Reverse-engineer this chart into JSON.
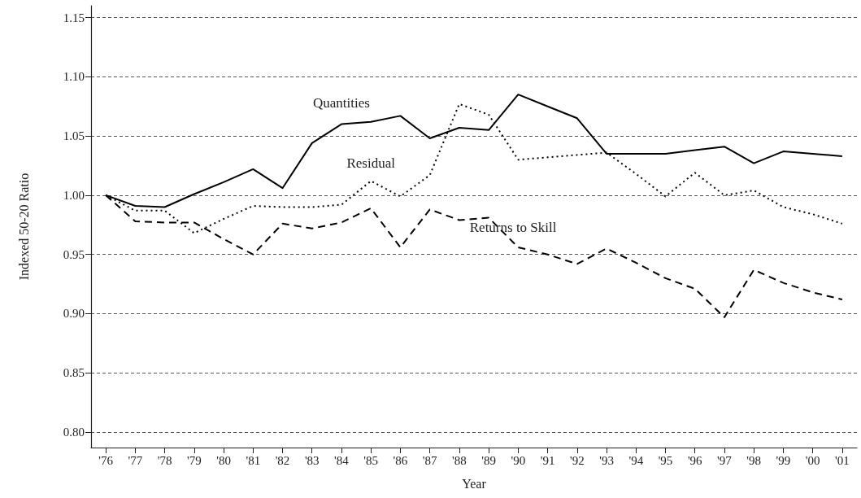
{
  "chart_data": {
    "type": "line",
    "xlabel": "Year",
    "ylabel": "Indexed 50-20 Ratio",
    "categories": [
      "'76",
      "'77",
      "'78",
      "'79",
      "'80",
      "'81",
      "'82",
      "'83",
      "'84",
      "'85",
      "'86",
      "'87",
      "'88",
      "'89",
      "'90",
      "'91",
      "'92",
      "'93",
      "'94",
      "'95",
      "'96",
      "'97",
      "'98",
      "'99",
      "'00",
      "'01"
    ],
    "series": [
      {
        "name": "Quantities",
        "color": "#000000",
        "line_style": "solid",
        "values": [
          1.0,
          0.991,
          0.99,
          1.001,
          1.011,
          1.022,
          1.006,
          1.044,
          1.06,
          1.062,
          1.067,
          1.048,
          1.057,
          1.055,
          1.085,
          1.075,
          1.065,
          1.035,
          1.035,
          1.035,
          1.038,
          1.041,
          1.027,
          1.037,
          1.035,
          1.033
        ]
      },
      {
        "name": "Residual",
        "color": "#000000",
        "line_style": "dotted",
        "values": [
          1.0,
          0.987,
          0.987,
          0.968,
          0.98,
          0.991,
          0.99,
          0.99,
          0.992,
          1.012,
          0.999,
          1.017,
          1.077,
          1.068,
          1.03,
          1.032,
          1.034,
          1.036,
          1.018,
          0.999,
          1.019,
          1.0,
          1.004,
          0.99,
          0.984,
          0.976
        ]
      },
      {
        "name": "Returns to Skill",
        "color": "#000000",
        "line_style": "dashed",
        "values": [
          1.0,
          0.978,
          0.977,
          0.977,
          0.963,
          0.95,
          0.976,
          0.972,
          0.977,
          0.989,
          0.956,
          0.988,
          0.979,
          0.981,
          0.956,
          0.95,
          0.942,
          0.955,
          0.943,
          0.93,
          0.921,
          0.897,
          0.937,
          0.926,
          0.918,
          0.912
        ]
      }
    ],
    "ylim": [
      0.787,
      1.16
    ],
    "yticks": [
      {
        "value": 0.8,
        "label": "0.80"
      },
      0.85,
      {
        "value": 0.9,
        "label": "0.90"
      },
      0.95,
      {
        "value": 1,
        "label": "1.00"
      },
      1.05,
      {
        "value": 1.1,
        "label": "1.10"
      },
      1.15
    ],
    "grid": "y",
    "marker": "none"
  }
}
